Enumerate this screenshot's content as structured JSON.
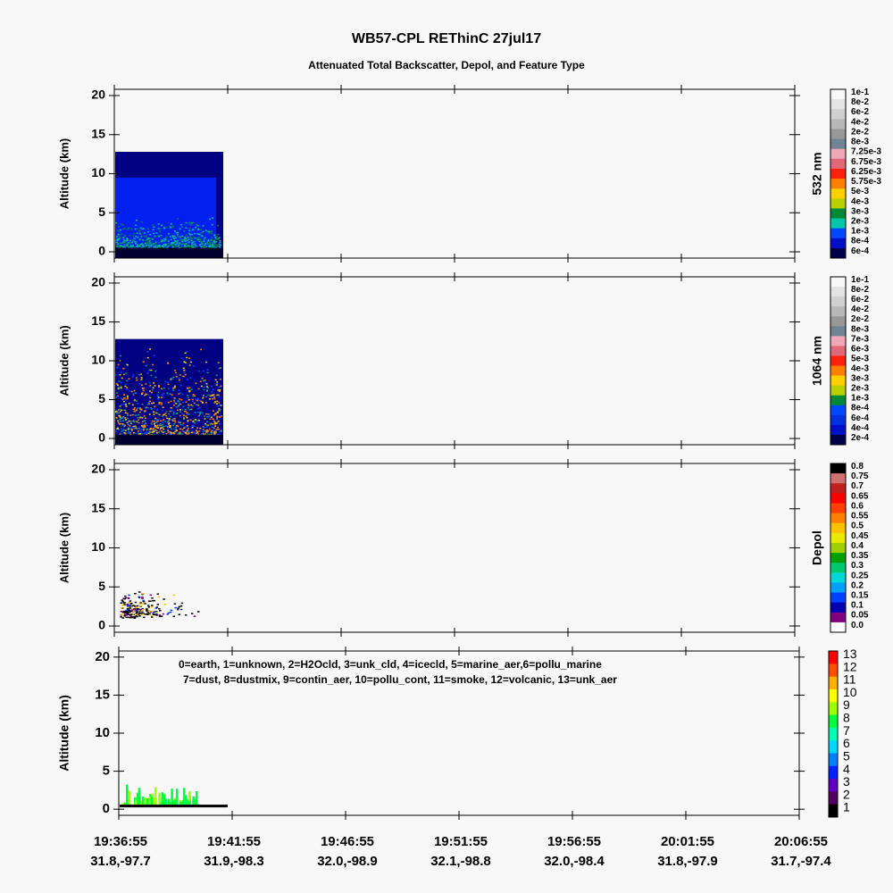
{
  "title": "WB57-CPL REThinC 27jul17",
  "subtitle": "Attenuated Total Backscatter, Depol, and Feature Type",
  "x_axis": {
    "times": [
      "19:36:55",
      "19:41:55",
      "19:46:55",
      "19:51:55",
      "19:56:55",
      "20:01:55",
      "20:06:55"
    ],
    "locations": [
      "31.8,-97.7",
      "31.9,-98.3",
      "32.0,-98.9",
      "32.1,-98.8",
      "32.0,-98.4",
      "31.8,-97.9",
      "31.7,-97.4"
    ]
  },
  "chart_data": [
    {
      "type": "heatmap",
      "ylabel": "Altitude (km)",
      "ylim": [
        -0.8,
        20.8
      ],
      "yticks": [
        0,
        5,
        10,
        15,
        20
      ],
      "colorbar": {
        "label": "532 nm",
        "levels": [
          "1e-1",
          "8e-2",
          "6e-2",
          "4e-2",
          "2e-2",
          "8e-3",
          "7.25e-3",
          "6.75e-3",
          "6.25e-3",
          "5.75e-3",
          "5e-3",
          "4e-3",
          "3e-3",
          "2e-3",
          "1e-3",
          "8e-4",
          "6e-4"
        ],
        "colors": [
          "#f8f8f8",
          "#e4e4e4",
          "#d0d0d0",
          "#b8b8b8",
          "#989898",
          "#708494",
          "#f0a8b8",
          "#e06878",
          "#ff2010",
          "#ff8000",
          "#ffd000",
          "#b8d000",
          "#008838",
          "#00c8a8",
          "#0048ff",
          "#0010c8",
          "#000048"
        ]
      }
    },
    {
      "type": "heatmap",
      "ylabel": "Altitude (km)",
      "ylim": [
        -0.8,
        20.8
      ],
      "yticks": [
        0,
        5,
        10,
        15,
        20
      ],
      "colorbar": {
        "label": "1064 nm",
        "levels": [
          "1e-1",
          "8e-2",
          "6e-2",
          "4e-2",
          "2e-2",
          "8e-3",
          "7e-3",
          "6e-3",
          "5e-3",
          "4e-3",
          "3e-3",
          "2e-3",
          "1e-3",
          "8e-4",
          "6e-4",
          "4e-4",
          "2e-4"
        ],
        "colors": [
          "#f8f8f8",
          "#e4e4e4",
          "#d0d0d0",
          "#b8b8b8",
          "#989898",
          "#708494",
          "#f0a8b8",
          "#e06878",
          "#ff2010",
          "#ff8000",
          "#ffd000",
          "#b8d000",
          "#008838",
          "#0048ff",
          "#0030e0",
          "#0010c8",
          "#000048"
        ]
      }
    },
    {
      "type": "heatmap",
      "ylabel": "Altitude (km)",
      "ylim": [
        -0.8,
        20.8
      ],
      "yticks": [
        0,
        5,
        10,
        15,
        20
      ],
      "colorbar": {
        "label": "Depol",
        "levels": [
          "0.8",
          "0.75",
          "0.7",
          "0.65",
          "0.6",
          "0.55",
          "0.5",
          "0.45",
          "0.4",
          "0.35",
          "0.3",
          "0.25",
          "0.2",
          "0.15",
          "0.1",
          "0.05",
          "0.0"
        ],
        "colors": [
          "#000000",
          "#d07070",
          "#c02020",
          "#ff0000",
          "#ff4000",
          "#ff8000",
          "#ffc000",
          "#e8e800",
          "#a0d000",
          "#00a000",
          "#00c870",
          "#00d8d8",
          "#00a0ff",
          "#0040ff",
          "#0000b0",
          "#800080",
          "#ffffff"
        ]
      }
    },
    {
      "type": "heatmap",
      "ylabel": "Altitude (km)",
      "ylim": [
        -0.8,
        20.8
      ],
      "yticks": [
        0,
        5,
        10,
        15,
        20
      ],
      "annotation": [
        "0=earth, 1=unknown, 2=H2Ocld, 3=unk_cld, 4=icecld, 5=marine_aer,6=pollu_marine",
        "7=dust, 8=dustmix, 9=contin_aer, 10=pollu_cont, 11=smoke, 12=volcanic, 13=unk_aer"
      ],
      "colorbar": {
        "levels": [
          13,
          12,
          11,
          10,
          9,
          8,
          7,
          6,
          5,
          4,
          3,
          2,
          1
        ],
        "colors": [
          "#ff0000",
          "#ff5000",
          "#ffb000",
          "#ffff00",
          "#a0ff00",
          "#00ff40",
          "#00ffb0",
          "#00d8ff",
          "#0080ff",
          "#0020ff",
          "#6000c0",
          "#500060",
          "#000000"
        ]
      }
    }
  ]
}
